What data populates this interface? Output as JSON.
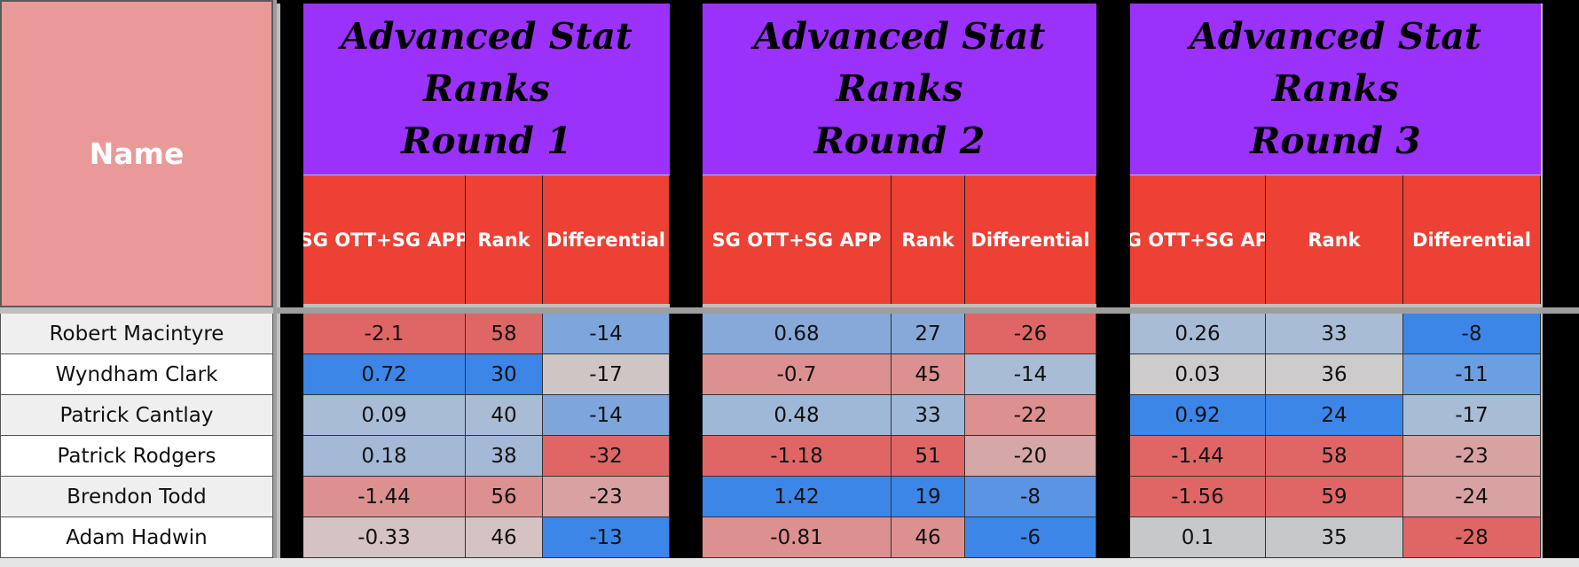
{
  "name_header": "Name",
  "rounds": [
    {
      "title_line1": "Advanced Stat Ranks",
      "title_line2": "Round 1",
      "columns": [
        "SG OTT+SG APP",
        "Rank",
        "Differential"
      ]
    },
    {
      "title_line1": "Advanced Stat Ranks",
      "title_line2": "Round 2",
      "columns": [
        "SG OTT+SG APP",
        "Rank",
        "Differential"
      ]
    },
    {
      "title_line1": "Advanced Stat Ranks",
      "title_line2": "Round 3",
      "columns": [
        "SG OTT+SG APP",
        "Rank",
        "Differential"
      ]
    }
  ],
  "players": [
    {
      "name": "Robert Macintyre",
      "rounds": [
        [
          "-2.1",
          "58",
          "-14"
        ],
        [
          "0.68",
          "27",
          "-26"
        ],
        [
          "0.26",
          "33",
          "-8"
        ]
      ]
    },
    {
      "name": "Wyndham Clark",
      "rounds": [
        [
          "0.72",
          "30",
          "-17"
        ],
        [
          "-0.7",
          "45",
          "-14"
        ],
        [
          "0.03",
          "36",
          "-11"
        ]
      ]
    },
    {
      "name": "Patrick Cantlay",
      "rounds": [
        [
          "0.09",
          "40",
          "-14"
        ],
        [
          "0.48",
          "33",
          "-22"
        ],
        [
          "0.92",
          "24",
          "-17"
        ]
      ]
    },
    {
      "name": "Patrick Rodgers",
      "rounds": [
        [
          "0.18",
          "38",
          "-32"
        ],
        [
          "-1.18",
          "51",
          "-20"
        ],
        [
          "-1.44",
          "58",
          "-23"
        ]
      ]
    },
    {
      "name": "Brendon Todd",
      "rounds": [
        [
          "-1.44",
          "56",
          "-23"
        ],
        [
          "1.42",
          "19",
          "-8"
        ],
        [
          "-1.56",
          "59",
          "-24"
        ]
      ]
    },
    {
      "name": "Adam Hadwin",
      "rounds": [
        [
          "-0.33",
          "46",
          "-13"
        ],
        [
          "-0.81",
          "46",
          "-6"
        ],
        [
          "0.1",
          "35",
          "-28"
        ]
      ]
    }
  ],
  "cell_colors": [
    [
      [
        "#e06666",
        "#e06666",
        "#7ea6dc"
      ],
      [
        "#86a9da",
        "#86a9da",
        "#e06666"
      ],
      [
        "#a9bcd6",
        "#a9bcd6",
        "#3c86e8"
      ]
    ],
    [
      [
        "#3c86e8",
        "#3c86e8",
        "#cfc5c5"
      ],
      [
        "#dc9090",
        "#dc9090",
        "#a9bcd6"
      ],
      [
        "#cdcbcb",
        "#cdcbcb",
        "#6b9fe1"
      ]
    ],
    [
      [
        "#a9bcd6",
        "#a9bcd6",
        "#7ea6dc"
      ],
      [
        "#a0b8d8",
        "#a0b8d8",
        "#dc9090"
      ],
      [
        "#3c86e8",
        "#3c86e8",
        "#a9bcd6"
      ]
    ],
    [
      [
        "#a3b9d6",
        "#a3b9d6",
        "#e06666"
      ],
      [
        "#e06666",
        "#e06666",
        "#d5a7a7"
      ],
      [
        "#e06666",
        "#e06666",
        "#d9a2a2"
      ]
    ],
    [
      [
        "#dc9090",
        "#dc9090",
        "#d9a2a2"
      ],
      [
        "#3c86e8",
        "#3c86e8",
        "#5b94e2"
      ],
      [
        "#e06666",
        "#e06666",
        "#d9a2a2"
      ]
    ],
    [
      [
        "#d5c2c2",
        "#d5c2c2",
        "#3c86e8"
      ],
      [
        "#dc9090",
        "#dc9090",
        "#3c86e8"
      ],
      [
        "#c6c8ca",
        "#c6c8ca",
        "#e06666"
      ]
    ]
  ],
  "name_row_colors": [
    "#efefef",
    "#ffffff"
  ]
}
